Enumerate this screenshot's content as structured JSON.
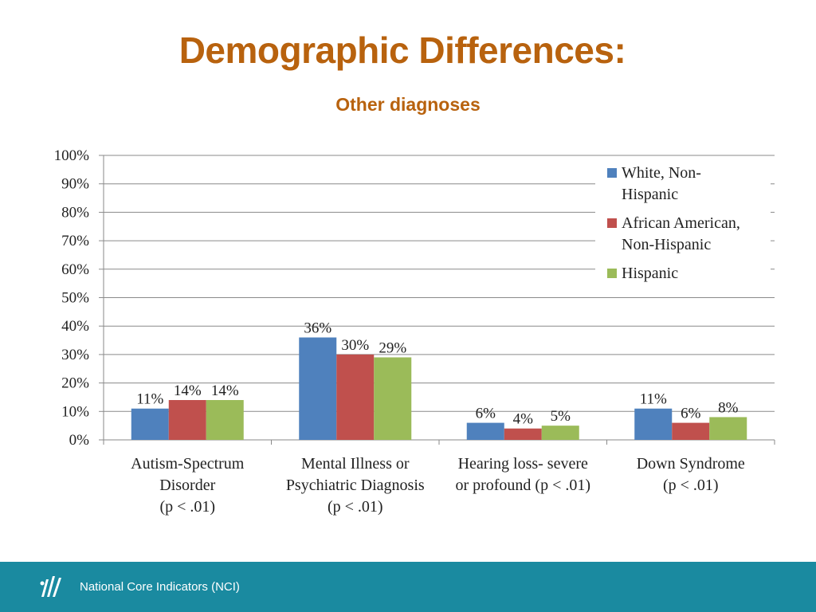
{
  "slide": {
    "title": "Demographic Differences:",
    "subtitle": "Other diagnoses",
    "footer_text": "National Core Indicators (NCI)",
    "footer_logo_icon": "nci-logo-icon"
  },
  "colors": {
    "title": "#b8620e",
    "footer_bg": "#1a8aa0",
    "series": [
      "#4f81bd",
      "#c0504d",
      "#9bbb59"
    ]
  },
  "chart_data": {
    "type": "bar",
    "categories": [
      [
        "Autism-Spectrum",
        "Disorder",
        "(p < .01)"
      ],
      [
        "Mental Illness or",
        "Psychiatric Diagnosis",
        "(p < .01)"
      ],
      [
        "Hearing loss- severe",
        "or profound (p < .01)"
      ],
      [
        "Down Syndrome",
        "(p < .01)"
      ]
    ],
    "series": [
      {
        "name": "White, Non-Hispanic",
        "legend_lines": [
          "White, Non-",
          "Hispanic"
        ],
        "values": [
          11,
          36,
          6,
          11
        ],
        "labels": [
          "11%",
          "36%",
          "6%",
          "11%"
        ]
      },
      {
        "name": "African American, Non-Hispanic",
        "legend_lines": [
          "African American,",
          "Non-Hispanic"
        ],
        "values": [
          14,
          30,
          4,
          6
        ],
        "labels": [
          "14%",
          "30%",
          "4%",
          "6%"
        ]
      },
      {
        "name": "Hispanic",
        "legend_lines": [
          "Hispanic"
        ],
        "values": [
          14,
          29,
          5,
          8
        ],
        "labels": [
          "14%",
          "29%",
          "5%",
          "8%"
        ]
      }
    ],
    "yticks": [
      "0%",
      "10%",
      "20%",
      "30%",
      "40%",
      "50%",
      "60%",
      "70%",
      "80%",
      "90%",
      "100%"
    ],
    "ylim": [
      0,
      100
    ],
    "grid": true,
    "legend": "top-right"
  }
}
